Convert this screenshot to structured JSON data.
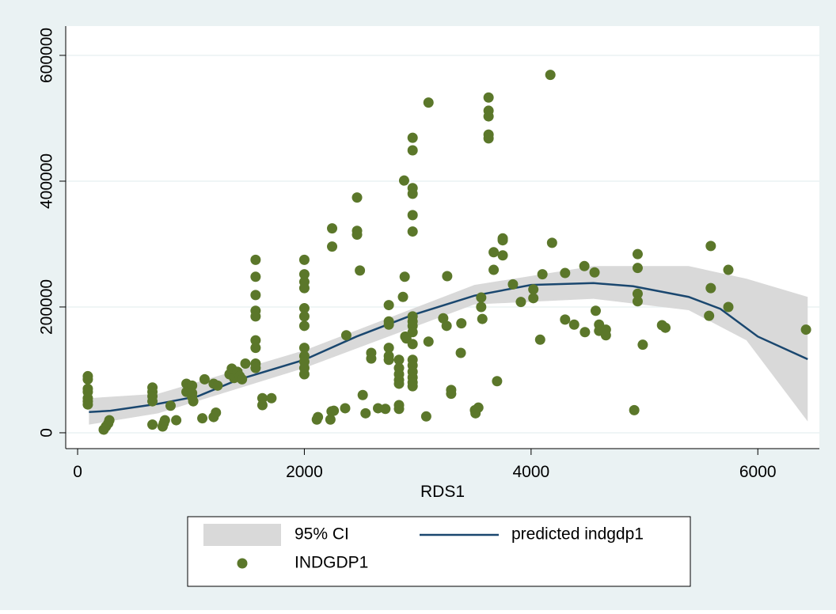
{
  "chart_data": {
    "type": "scatter",
    "x_label": "RDS1",
    "xlim": [
      -105,
      6543
    ],
    "ylim": [
      -25200,
      646500
    ],
    "xticks": [
      0,
      2000,
      4000,
      6000
    ],
    "yticks": [
      0,
      200000,
      400000,
      600000
    ],
    "grid": true,
    "series": [
      {
        "name": "95% CI",
        "type": "area",
        "color": "#d9d9d9",
        "x": [
          100,
          710,
          2000,
          3500,
          4550,
          5390,
          5900,
          6440
        ],
        "upper": [
          55000,
          62000,
          131000,
          235000,
          265000,
          265000,
          245000,
          216000
        ],
        "lower": [
          13000,
          31000,
          103000,
          204000,
          213000,
          195000,
          147000,
          18000
        ]
      },
      {
        "name": "predicted indgdp1",
        "type": "line",
        "color": "#1a476f",
        "x": [
          100,
          290,
          710,
          1060,
          1410,
          2000,
          2460,
          2950,
          3500,
          4000,
          4550,
          4900,
          5390,
          5670,
          6000,
          6440
        ],
        "values": [
          33000,
          35000,
          46000,
          58000,
          84000,
          116000,
          153000,
          187000,
          218000,
          235000,
          238000,
          233000,
          216000,
          197000,
          153000,
          117000
        ]
      },
      {
        "name": "INDGDP1",
        "type": "scatter",
        "color": "#5b772a",
        "x": [
          90,
          90,
          90,
          90,
          90,
          90,
          90,
          230,
          250,
          270,
          280,
          660,
          660,
          660,
          660,
          660,
          750,
          760,
          770,
          820,
          870,
          960,
          960,
          990,
          1010,
          1010,
          1010,
          1020,
          1100,
          1120,
          1200,
          1235,
          1200,
          1220,
          1340,
          1360,
          1380,
          1410,
          1430,
          1450,
          1480,
          1570,
          1570,
          1570,
          1570,
          1570,
          1570,
          1570,
          1570,
          1570,
          1630,
          1630,
          1710,
          2000,
          2000,
          2000,
          2000,
          2000,
          2000,
          2000,
          2000,
          2000,
          2000,
          2000,
          2000,
          2110,
          2120,
          2230,
          2240,
          2245,
          2245,
          2260,
          2360,
          2370,
          2465,
          2465,
          2465,
          2490,
          2515,
          2540,
          2590,
          2590,
          2650,
          2715,
          2745,
          2745,
          2745,
          2745,
          2745,
          2745,
          2835,
          2835,
          2835,
          2835,
          2835,
          2835,
          2835,
          2870,
          2880,
          2885,
          2890,
          2900,
          2955,
          2955,
          2955,
          2955,
          2955,
          2955,
          2955,
          2955,
          2955,
          2955,
          2955,
          2955,
          2955,
          2955,
          2955,
          2955,
          2955,
          3095,
          3095,
          3075,
          3225,
          3260,
          3255,
          3295,
          3295,
          3380,
          3385,
          3505,
          3510,
          3535,
          3560,
          3560,
          3570,
          3625,
          3625,
          3625,
          3625,
          3625,
          3670,
          3670,
          3700,
          3750,
          3750,
          3750,
          3840,
          3910,
          4020,
          4020,
          4080,
          4100,
          4170,
          4185,
          4300,
          4300,
          4380,
          4470,
          4475,
          4560,
          4570,
          4600,
          4600,
          4660,
          4660,
          4910,
          4940,
          4940,
          4940,
          4940,
          4985,
          5155,
          5185,
          5585,
          5585,
          5570,
          5740,
          5740,
          6425
        ],
        "values": [
          90000,
          85000,
          70000,
          65000,
          55000,
          50000,
          45000,
          5000,
          10000,
          15000,
          20000,
          72000,
          65000,
          58000,
          50000,
          13000,
          10000,
          15000,
          20000,
          43000,
          20000,
          78000,
          65000,
          72000,
          75000,
          63000,
          57000,
          50000,
          23000,
          85000,
          78000,
          75000,
          25000,
          32000,
          93000,
          102000,
          87000,
          97000,
          90000,
          85000,
          110000,
          275000,
          248000,
          219000,
          194000,
          185000,
          147000,
          135000,
          110000,
          103000,
          55000,
          44000,
          55000,
          275000,
          252000,
          240000,
          230000,
          198000,
          185000,
          170000,
          135000,
          122000,
          113000,
          103000,
          93000,
          21000,
          25000,
          21000,
          34000,
          296000,
          325000,
          35000,
          39000,
          155000,
          374000,
          321000,
          315000,
          258000,
          60000,
          31000,
          127000,
          118000,
          39000,
          38000,
          203000,
          177000,
          172000,
          135000,
          122000,
          116000,
          116000,
          103000,
          93000,
          84000,
          78000,
          44000,
          38000,
          216000,
          401000,
          248000,
          153000,
          150000,
          469000,
          449000,
          389000,
          380000,
          346000,
          320000,
          185000,
          177000,
          170000,
          160000,
          141000,
          116000,
          107000,
          97000,
          88000,
          80000,
          74000,
          525000,
          145000,
          26000,
          182000,
          249000,
          170000,
          68000,
          62000,
          127000,
          174000,
          36000,
          31000,
          40000,
          215000,
          200000,
          181000,
          533000,
          512000,
          503000,
          474000,
          468000,
          259000,
          287000,
          82000,
          309000,
          306000,
          282000,
          236000,
          208000,
          228000,
          214000,
          148000,
          252000,
          569000,
          302000,
          254000,
          180000,
          172000,
          265000,
          160000,
          255000,
          194000,
          172000,
          162000,
          164000,
          155000,
          36000,
          284000,
          262000,
          221000,
          209000,
          140000,
          171000,
          167000,
          297000,
          230000,
          186000,
          259000,
          200000,
          164000
        ]
      }
    ]
  }
}
